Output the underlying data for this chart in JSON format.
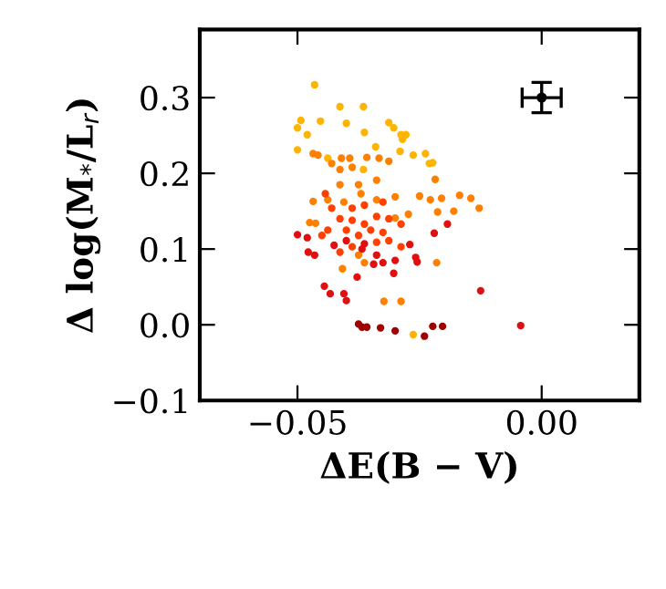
{
  "chart_data": {
    "type": "scatter",
    "xlabel": "ΔE(B − V)",
    "ylabel": "Δ log(M$_{*}$/L$_{r}$)",
    "xlim": [
      -0.07,
      0.02
    ],
    "ylim": [
      -0.1,
      0.39
    ],
    "xticks": [
      {
        "value": -0.05,
        "label": "−0.05"
      },
      {
        "value": 0,
        "label": "0.00"
      }
    ],
    "yticks": [
      {
        "value": -0.1,
        "label": "−0.1"
      },
      {
        "value": 0,
        "label": "0.0"
      },
      0.1,
      0.2,
      0.3
    ],
    "grid": false,
    "legend": false,
    "marker": "circle",
    "series": [
      {
        "color": "#ffb400",
        "x": [
          -0.0465,
          -0.0493,
          -0.05,
          -0.048,
          -0.0453,
          -0.0413,
          -0.0365,
          -0.04,
          -0.0363,
          -0.0313,
          -0.0303,
          -0.0288,
          -0.0278,
          -0.0285,
          -0.029,
          -0.0263,
          -0.0238,
          -0.0223,
          -0.023,
          -0.0438,
          -0.0263,
          -0.05,
          -0.034,
          -0.0365
        ],
        "values": [
          0.317,
          0.27,
          0.26,
          0.251,
          0.269,
          0.288,
          0.288,
          0.266,
          0.254,
          0.267,
          0.26,
          0.251,
          0.251,
          0.245,
          0.229,
          0.224,
          0.226,
          0.214,
          0.213,
          0.22,
          -0.013,
          0.231,
          0.235,
          0.205
        ]
      },
      {
        "color": "#ff8000",
        "x": [
          -0.0468,
          -0.0458,
          -0.043,
          -0.041,
          -0.0393,
          -0.0358,
          -0.0333,
          -0.0313,
          -0.0413,
          -0.0388,
          -0.0218,
          -0.0413,
          -0.0375,
          -0.0338,
          -0.0468,
          -0.0438,
          -0.0405,
          -0.037,
          -0.0338,
          -0.03,
          -0.025,
          -0.0228,
          -0.0205,
          -0.0168,
          -0.0145,
          -0.018,
          -0.0128,
          -0.0213,
          -0.0475,
          -0.0463,
          -0.03,
          -0.0273,
          -0.0215,
          -0.0323,
          -0.0288,
          -0.0375,
          -0.0363,
          -0.0408
        ],
        "values": [
          0.226,
          0.224,
          0.213,
          0.22,
          0.22,
          0.221,
          0.22,
          0.216,
          0.205,
          0.208,
          0.192,
          0.185,
          0.185,
          0.191,
          0.163,
          0.165,
          0.162,
          0.173,
          0.165,
          0.169,
          0.17,
          0.165,
          0.167,
          0.171,
          0.167,
          0.15,
          0.154,
          0.149,
          0.135,
          0.134,
          0.141,
          0.146,
          0.082,
          0.031,
          0.031,
          0.092,
          0.082,
          0.074
        ]
      },
      {
        "color": "#ff4000",
        "x": [
          -0.0443,
          -0.043,
          -0.0388,
          -0.0363,
          -0.0325,
          -0.0413,
          -0.0388,
          -0.0363,
          -0.0338,
          -0.0313,
          -0.0288,
          -0.0438,
          -0.04,
          -0.0375,
          -0.035,
          -0.0325,
          -0.0338,
          -0.0388,
          -0.0413,
          -0.0313,
          -0.0288,
          -0.045
        ],
        "values": [
          0.173,
          0.154,
          0.154,
          0.158,
          0.162,
          0.14,
          0.138,
          0.133,
          0.143,
          0.14,
          0.133,
          0.125,
          0.125,
          0.118,
          0.125,
          0.122,
          0.109,
          0.103,
          0.096,
          0.111,
          0.103,
          0.118
        ]
      },
      {
        "color": "#e01010",
        "x": [
          -0.05,
          -0.048,
          -0.0478,
          -0.0465,
          -0.0425,
          -0.04,
          -0.0363,
          -0.0368,
          -0.0338,
          -0.0325,
          -0.0344,
          -0.03,
          -0.027,
          -0.0258,
          -0.022,
          -0.0193,
          -0.0303,
          -0.0378,
          -0.0445,
          -0.0433,
          -0.0405,
          -0.04,
          -0.0125,
          -0.0043,
          -0.0255
        ],
        "values": [
          0.119,
          0.115,
          0.096,
          0.092,
          0.105,
          0.111,
          0.107,
          0.1,
          0.092,
          0.082,
          0.08,
          0.085,
          0.106,
          0.089,
          0.121,
          0.133,
          0.068,
          0.063,
          0.051,
          0.041,
          0.041,
          0.032,
          0.045,
          -0.001,
          0.083
        ]
      },
      {
        "color": "#a00000",
        "x": [
          -0.0375,
          -0.0368,
          -0.0358,
          -0.033,
          -0.03,
          -0.024,
          -0.0223,
          -0.0203
        ],
        "values": [
          0.001,
          -0.003,
          -0.003,
          -0.004,
          -0.008,
          -0.015,
          -0.002,
          -0.002
        ]
      },
      {
        "color": "#000000",
        "x": [
          0
        ],
        "values": [
          0.3
        ],
        "errors": [
          0.02
        ],
        "xerrors": [
          0.004
        ]
      }
    ]
  }
}
